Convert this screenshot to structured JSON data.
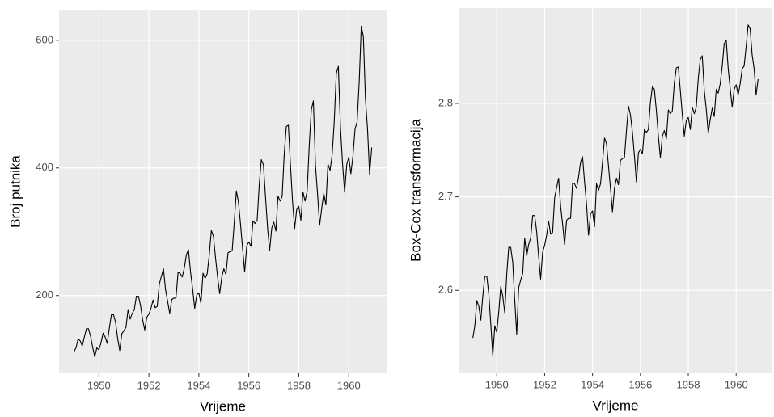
{
  "chart_data": [
    {
      "type": "line",
      "x_label": "Vrijeme",
      "y_label": "Broj putnika",
      "color": "#000000",
      "grid": true,
      "xlim": [
        1948.404,
        1961.513
      ],
      "xticks": [
        1950,
        1952,
        1954,
        1956,
        1958,
        1960
      ],
      "ylim": [
        78.1,
        647.9
      ],
      "yticks": [
        200,
        400,
        600
      ],
      "x": [
        1949,
        1949.083,
        1949.167,
        1949.25,
        1949.333,
        1949.417,
        1949.5,
        1949.583,
        1949.667,
        1949.75,
        1949.833,
        1949.917,
        1950,
        1950.083,
        1950.167,
        1950.25,
        1950.333,
        1950.417,
        1950.5,
        1950.583,
        1950.667,
        1950.75,
        1950.833,
        1950.917,
        1951,
        1951.083,
        1951.167,
        1951.25,
        1951.333,
        1951.417,
        1951.5,
        1951.583,
        1951.667,
        1951.75,
        1951.833,
        1951.917,
        1952,
        1952.083,
        1952.167,
        1952.25,
        1952.333,
        1952.417,
        1952.5,
        1952.583,
        1952.667,
        1952.75,
        1952.833,
        1952.917,
        1953,
        1953.083,
        1953.167,
        1953.25,
        1953.333,
        1953.417,
        1953.5,
        1953.583,
        1953.667,
        1953.75,
        1953.833,
        1953.917,
        1954,
        1954.083,
        1954.167,
        1954.25,
        1954.333,
        1954.417,
        1954.5,
        1954.583,
        1954.667,
        1954.75,
        1954.833,
        1954.917,
        1955,
        1955.083,
        1955.167,
        1955.25,
        1955.333,
        1955.417,
        1955.5,
        1955.583,
        1955.667,
        1955.75,
        1955.833,
        1955.917,
        1956,
        1956.083,
        1956.167,
        1956.25,
        1956.333,
        1956.417,
        1956.5,
        1956.583,
        1956.667,
        1956.75,
        1956.833,
        1956.917,
        1957,
        1957.083,
        1957.167,
        1957.25,
        1957.333,
        1957.417,
        1957.5,
        1957.583,
        1957.667,
        1957.75,
        1957.833,
        1957.917,
        1958,
        1958.083,
        1958.167,
        1958.25,
        1958.333,
        1958.417,
        1958.5,
        1958.583,
        1958.667,
        1958.75,
        1958.833,
        1958.917,
        1959,
        1959.083,
        1959.167,
        1959.25,
        1959.333,
        1959.417,
        1959.5,
        1959.583,
        1959.667,
        1959.75,
        1959.833,
        1959.917,
        1960,
        1960.083,
        1960.167,
        1960.25,
        1960.333,
        1960.417,
        1960.5,
        1960.583,
        1960.667,
        1960.75,
        1960.833,
        1960.917
      ],
      "values": [
        112,
        118,
        132,
        129,
        121,
        135,
        148,
        148,
        136,
        119,
        104,
        118,
        115,
        126,
        141,
        135,
        125,
        149,
        170,
        170,
        158,
        133,
        114,
        140,
        145,
        150,
        178,
        163,
        172,
        178,
        199,
        199,
        184,
        162,
        146,
        166,
        171,
        180,
        193,
        181,
        183,
        218,
        230,
        242,
        209,
        191,
        172,
        194,
        196,
        196,
        236,
        235,
        229,
        243,
        264,
        272,
        237,
        211,
        180,
        201,
        204,
        188,
        235,
        227,
        234,
        264,
        302,
        293,
        259,
        229,
        203,
        229,
        242,
        233,
        267,
        269,
        270,
        315,
        364,
        347,
        312,
        274,
        237,
        278,
        284,
        277,
        317,
        313,
        318,
        374,
        413,
        405,
        355,
        306,
        271,
        306,
        315,
        301,
        356,
        348,
        355,
        422,
        465,
        467,
        404,
        347,
        305,
        336,
        340,
        318,
        362,
        348,
        363,
        435,
        491,
        505,
        404,
        359,
        310,
        337,
        360,
        342,
        406,
        396,
        420,
        472,
        548,
        559,
        463,
        407,
        362,
        405,
        417,
        391,
        419,
        461,
        472,
        535,
        622,
        606,
        508,
        461,
        390,
        432
      ]
    },
    {
      "type": "line",
      "x_label": "Vrijeme",
      "y_label": "Box-Cox transformacija",
      "color": "#000000",
      "grid": true,
      "xlim": [
        1948.404,
        1961.513
      ],
      "xticks": [
        1950,
        1952,
        1954,
        1956,
        1958,
        1960
      ],
      "ylim": [
        2.512,
        2.902
      ],
      "yticks": [
        2.6,
        2.7,
        2.8
      ],
      "x": [
        1949,
        1949.083,
        1949.167,
        1949.25,
        1949.333,
        1949.417,
        1949.5,
        1949.583,
        1949.667,
        1949.75,
        1949.833,
        1949.917,
        1950,
        1950.083,
        1950.167,
        1950.25,
        1950.333,
        1950.417,
        1950.5,
        1950.583,
        1950.667,
        1950.75,
        1950.833,
        1950.917,
        1951,
        1951.083,
        1951.167,
        1951.25,
        1951.333,
        1951.417,
        1951.5,
        1951.583,
        1951.667,
        1951.75,
        1951.833,
        1951.917,
        1952,
        1952.083,
        1952.167,
        1952.25,
        1952.333,
        1952.417,
        1952.5,
        1952.583,
        1952.667,
        1952.75,
        1952.833,
        1952.917,
        1953,
        1953.083,
        1953.167,
        1953.25,
        1953.333,
        1953.417,
        1953.5,
        1953.583,
        1953.667,
        1953.75,
        1953.833,
        1953.917,
        1954,
        1954.083,
        1954.167,
        1954.25,
        1954.333,
        1954.417,
        1954.5,
        1954.583,
        1954.667,
        1954.75,
        1954.833,
        1954.917,
        1955,
        1955.083,
        1955.167,
        1955.25,
        1955.333,
        1955.417,
        1955.5,
        1955.583,
        1955.667,
        1955.75,
        1955.833,
        1955.917,
        1956,
        1956.083,
        1956.167,
        1956.25,
        1956.333,
        1956.417,
        1956.5,
        1956.583,
        1956.667,
        1956.75,
        1956.833,
        1956.917,
        1957,
        1957.083,
        1957.167,
        1957.25,
        1957.333,
        1957.417,
        1957.5,
        1957.583,
        1957.667,
        1957.75,
        1957.833,
        1957.917,
        1958,
        1958.083,
        1958.167,
        1958.25,
        1958.333,
        1958.417,
        1958.5,
        1958.583,
        1958.667,
        1958.75,
        1958.833,
        1958.917,
        1959,
        1959.083,
        1959.167,
        1959.25,
        1959.333,
        1959.417,
        1959.5,
        1959.583,
        1959.667,
        1959.75,
        1959.833,
        1959.917,
        1960,
        1960.083,
        1960.167,
        1960.25,
        1960.333,
        1960.417,
        1960.5,
        1960.583,
        1960.667,
        1960.75,
        1960.833,
        1960.917
      ],
      "values": [
        2.549,
        2.562,
        2.589,
        2.583,
        2.568,
        2.594,
        2.615,
        2.615,
        2.596,
        2.564,
        2.53,
        2.562,
        2.555,
        2.577,
        2.604,
        2.594,
        2.576,
        2.617,
        2.646,
        2.646,
        2.63,
        2.59,
        2.553,
        2.603,
        2.611,
        2.618,
        2.656,
        2.637,
        2.649,
        2.656,
        2.68,
        2.68,
        2.663,
        2.636,
        2.612,
        2.641,
        2.648,
        2.659,
        2.674,
        2.66,
        2.662,
        2.699,
        2.71,
        2.72,
        2.69,
        2.671,
        2.649,
        2.675,
        2.677,
        2.677,
        2.715,
        2.714,
        2.709,
        2.721,
        2.737,
        2.743,
        2.716,
        2.692,
        2.659,
        2.682,
        2.685,
        2.668,
        2.714,
        2.707,
        2.714,
        2.737,
        2.763,
        2.757,
        2.733,
        2.709,
        2.684,
        2.709,
        2.72,
        2.713,
        2.739,
        2.741,
        2.742,
        2.771,
        2.797,
        2.788,
        2.769,
        2.744,
        2.716,
        2.747,
        2.751,
        2.746,
        2.772,
        2.769,
        2.772,
        2.801,
        2.818,
        2.815,
        2.792,
        2.765,
        2.742,
        2.765,
        2.771,
        2.762,
        2.793,
        2.789,
        2.792,
        2.822,
        2.838,
        2.839,
        2.814,
        2.788,
        2.765,
        2.782,
        2.785,
        2.772,
        2.796,
        2.789,
        2.796,
        2.827,
        2.847,
        2.851,
        2.814,
        2.794,
        2.768,
        2.783,
        2.795,
        2.786,
        2.815,
        2.811,
        2.821,
        2.84,
        2.864,
        2.868,
        2.837,
        2.816,
        2.796,
        2.815,
        2.82,
        2.809,
        2.821,
        2.837,
        2.84,
        2.861,
        2.884,
        2.88,
        2.852,
        2.837,
        2.809,
        2.826
      ]
    }
  ]
}
